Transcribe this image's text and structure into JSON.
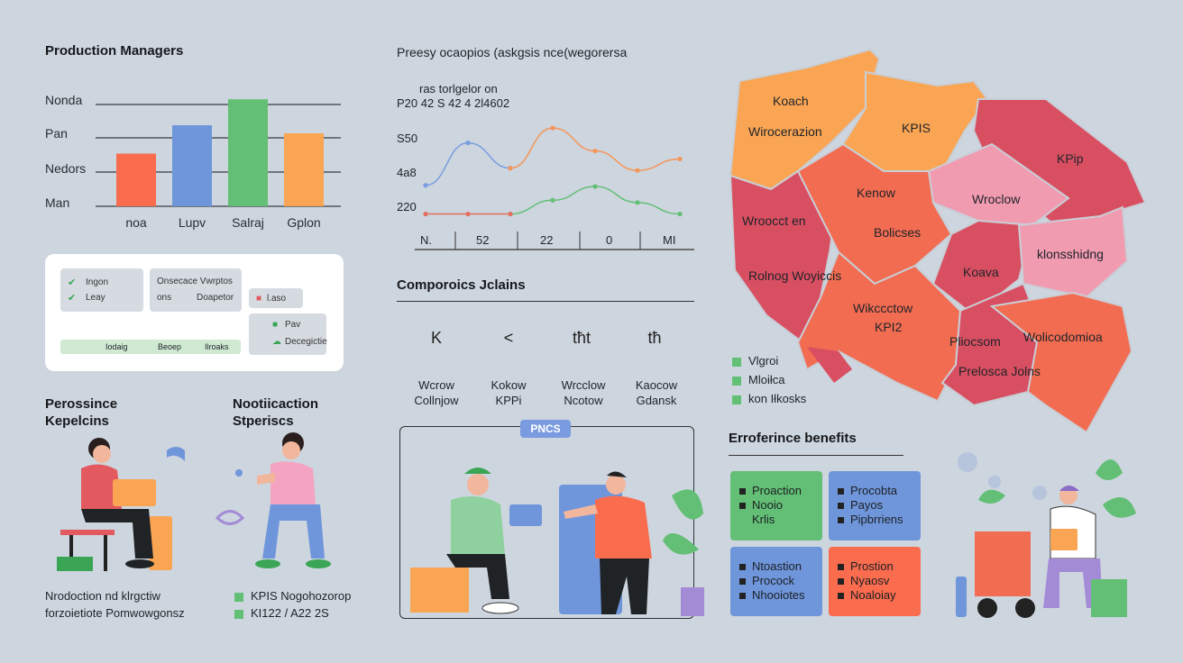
{
  "bar_chart": {
    "title": "Production Managers",
    "row_labels": [
      "Nonda",
      "Pan",
      "Nedors",
      "Man"
    ],
    "chart_data": {
      "type": "bar",
      "categories": [
        "noa",
        "Lupv",
        "Salraj",
        "Gplon"
      ],
      "values": [
        65,
        100,
        132,
        90
      ],
      "colors": [
        "#fa6c4e",
        "#6f96db",
        "#62bf75",
        "#f9a553"
      ],
      "ylim": [
        0,
        150
      ]
    }
  },
  "line_chart": {
    "title": "Preesy ocaopios (askgsis nce(wegorersa",
    "subtitle_lines": [
      "ras torlgelor on",
      "P20  42 S 42  4 2l4602"
    ],
    "y_labels": [
      "S50",
      "4a8",
      "220"
    ],
    "x_labels": [
      "N.",
      "52",
      "22",
      "0",
      "MI"
    ],
    "chart_data": {
      "type": "line",
      "x": [
        0,
        1,
        2,
        3,
        4,
        5,
        6
      ],
      "series": [
        {
          "name": "blue",
          "color": "#7a9de0",
          "values": [
            45,
            82,
            60,
            null,
            null,
            null,
            null
          ]
        },
        {
          "name": "orange",
          "color": "#f4965a",
          "values": [
            null,
            null,
            60,
            95,
            75,
            58,
            68
          ]
        },
        {
          "name": "green",
          "color": "#62bf75",
          "values": [
            null,
            null,
            20,
            32,
            44,
            30,
            20
          ]
        },
        {
          "name": "red",
          "color": "#e46e5c",
          "values": [
            20,
            20,
            20,
            null,
            null,
            null,
            null
          ]
        }
      ],
      "ylim": [
        0,
        110
      ]
    }
  },
  "notif_card": {
    "left_chips": [
      [
        "Ingon",
        "Leay"
      ]
    ],
    "mid_chips": [
      [
        "Onsecace Vwrptos"
      ],
      [
        "ons",
        "Doapetor"
      ]
    ],
    "right_chips": [
      [
        "l.aso"
      ],
      [
        "Pav",
        "Decegictie"
      ]
    ],
    "bar_items": [
      "Iodaig",
      "Beoep",
      "Ilroaks"
    ]
  },
  "people_left": {
    "title1": [
      "Perossince",
      "Kepelcins"
    ],
    "title2": [
      "Nootiicaction",
      "Stperiscs"
    ],
    "bottom_text": [
      "Nrodoction nd klrgctiw",
      "forzoietiote Pomwowgonsz"
    ],
    "bottom_legend": [
      "KPIS Nogohozorop",
      "KI122 / A22 2S"
    ]
  },
  "components": {
    "title": "Comporoics Jclains",
    "circles": [
      {
        "glyph": "K",
        "color": "#7a9be0",
        "line1": "Wcrow",
        "line2": "Collnjow"
      },
      {
        "glyph": "<",
        "color": "#e25a5f",
        "line1": "Kokow",
        "line2": "KPPi"
      },
      {
        "glyph": "tħt",
        "color": "#62bf75",
        "line1": "Wrcclow",
        "line2": "Ncotow"
      },
      {
        "glyph": "tħ",
        "color": "#f9a553",
        "line1": "Kaocow",
        "line2": "Gdansk"
      }
    ],
    "badge": "PNCS"
  },
  "map": {
    "regions": [
      "Koach",
      "Wirocerazion",
      "KPIS",
      "KPip",
      "Kenow",
      "Wroclow",
      "Wroocct en",
      "Bolicses",
      "klonsshidng",
      "Rolnog Woyiccis",
      "Koava",
      "Wikccctow",
      "KPI2",
      "Pliocsom",
      "Wolicodomioa",
      "Prelosca  Jolns"
    ],
    "legend": [
      "Vlgroi",
      "Mloiłca",
      "kon Iłkosks"
    ],
    "legend_colors": [
      "#62bf75",
      "#62bf75",
      "#62bf75"
    ]
  },
  "benefits": {
    "title": "Erroferince benefits",
    "boxes": [
      {
        "color": "#62bf75",
        "items": [
          "Proaction",
          "Nooio",
          "Krlis"
        ]
      },
      {
        "color": "#6f96db",
        "items": [
          "Procobta",
          "Payos",
          "Pipbrriens"
        ]
      },
      {
        "color": "#6f96db",
        "items": [
          "Ntoastion",
          "Procock",
          "Nhooiotes"
        ]
      },
      {
        "color": "#fa6c4e",
        "items": [
          "Prostion",
          "Nyaosv",
          "Noaloiay"
        ]
      }
    ]
  }
}
